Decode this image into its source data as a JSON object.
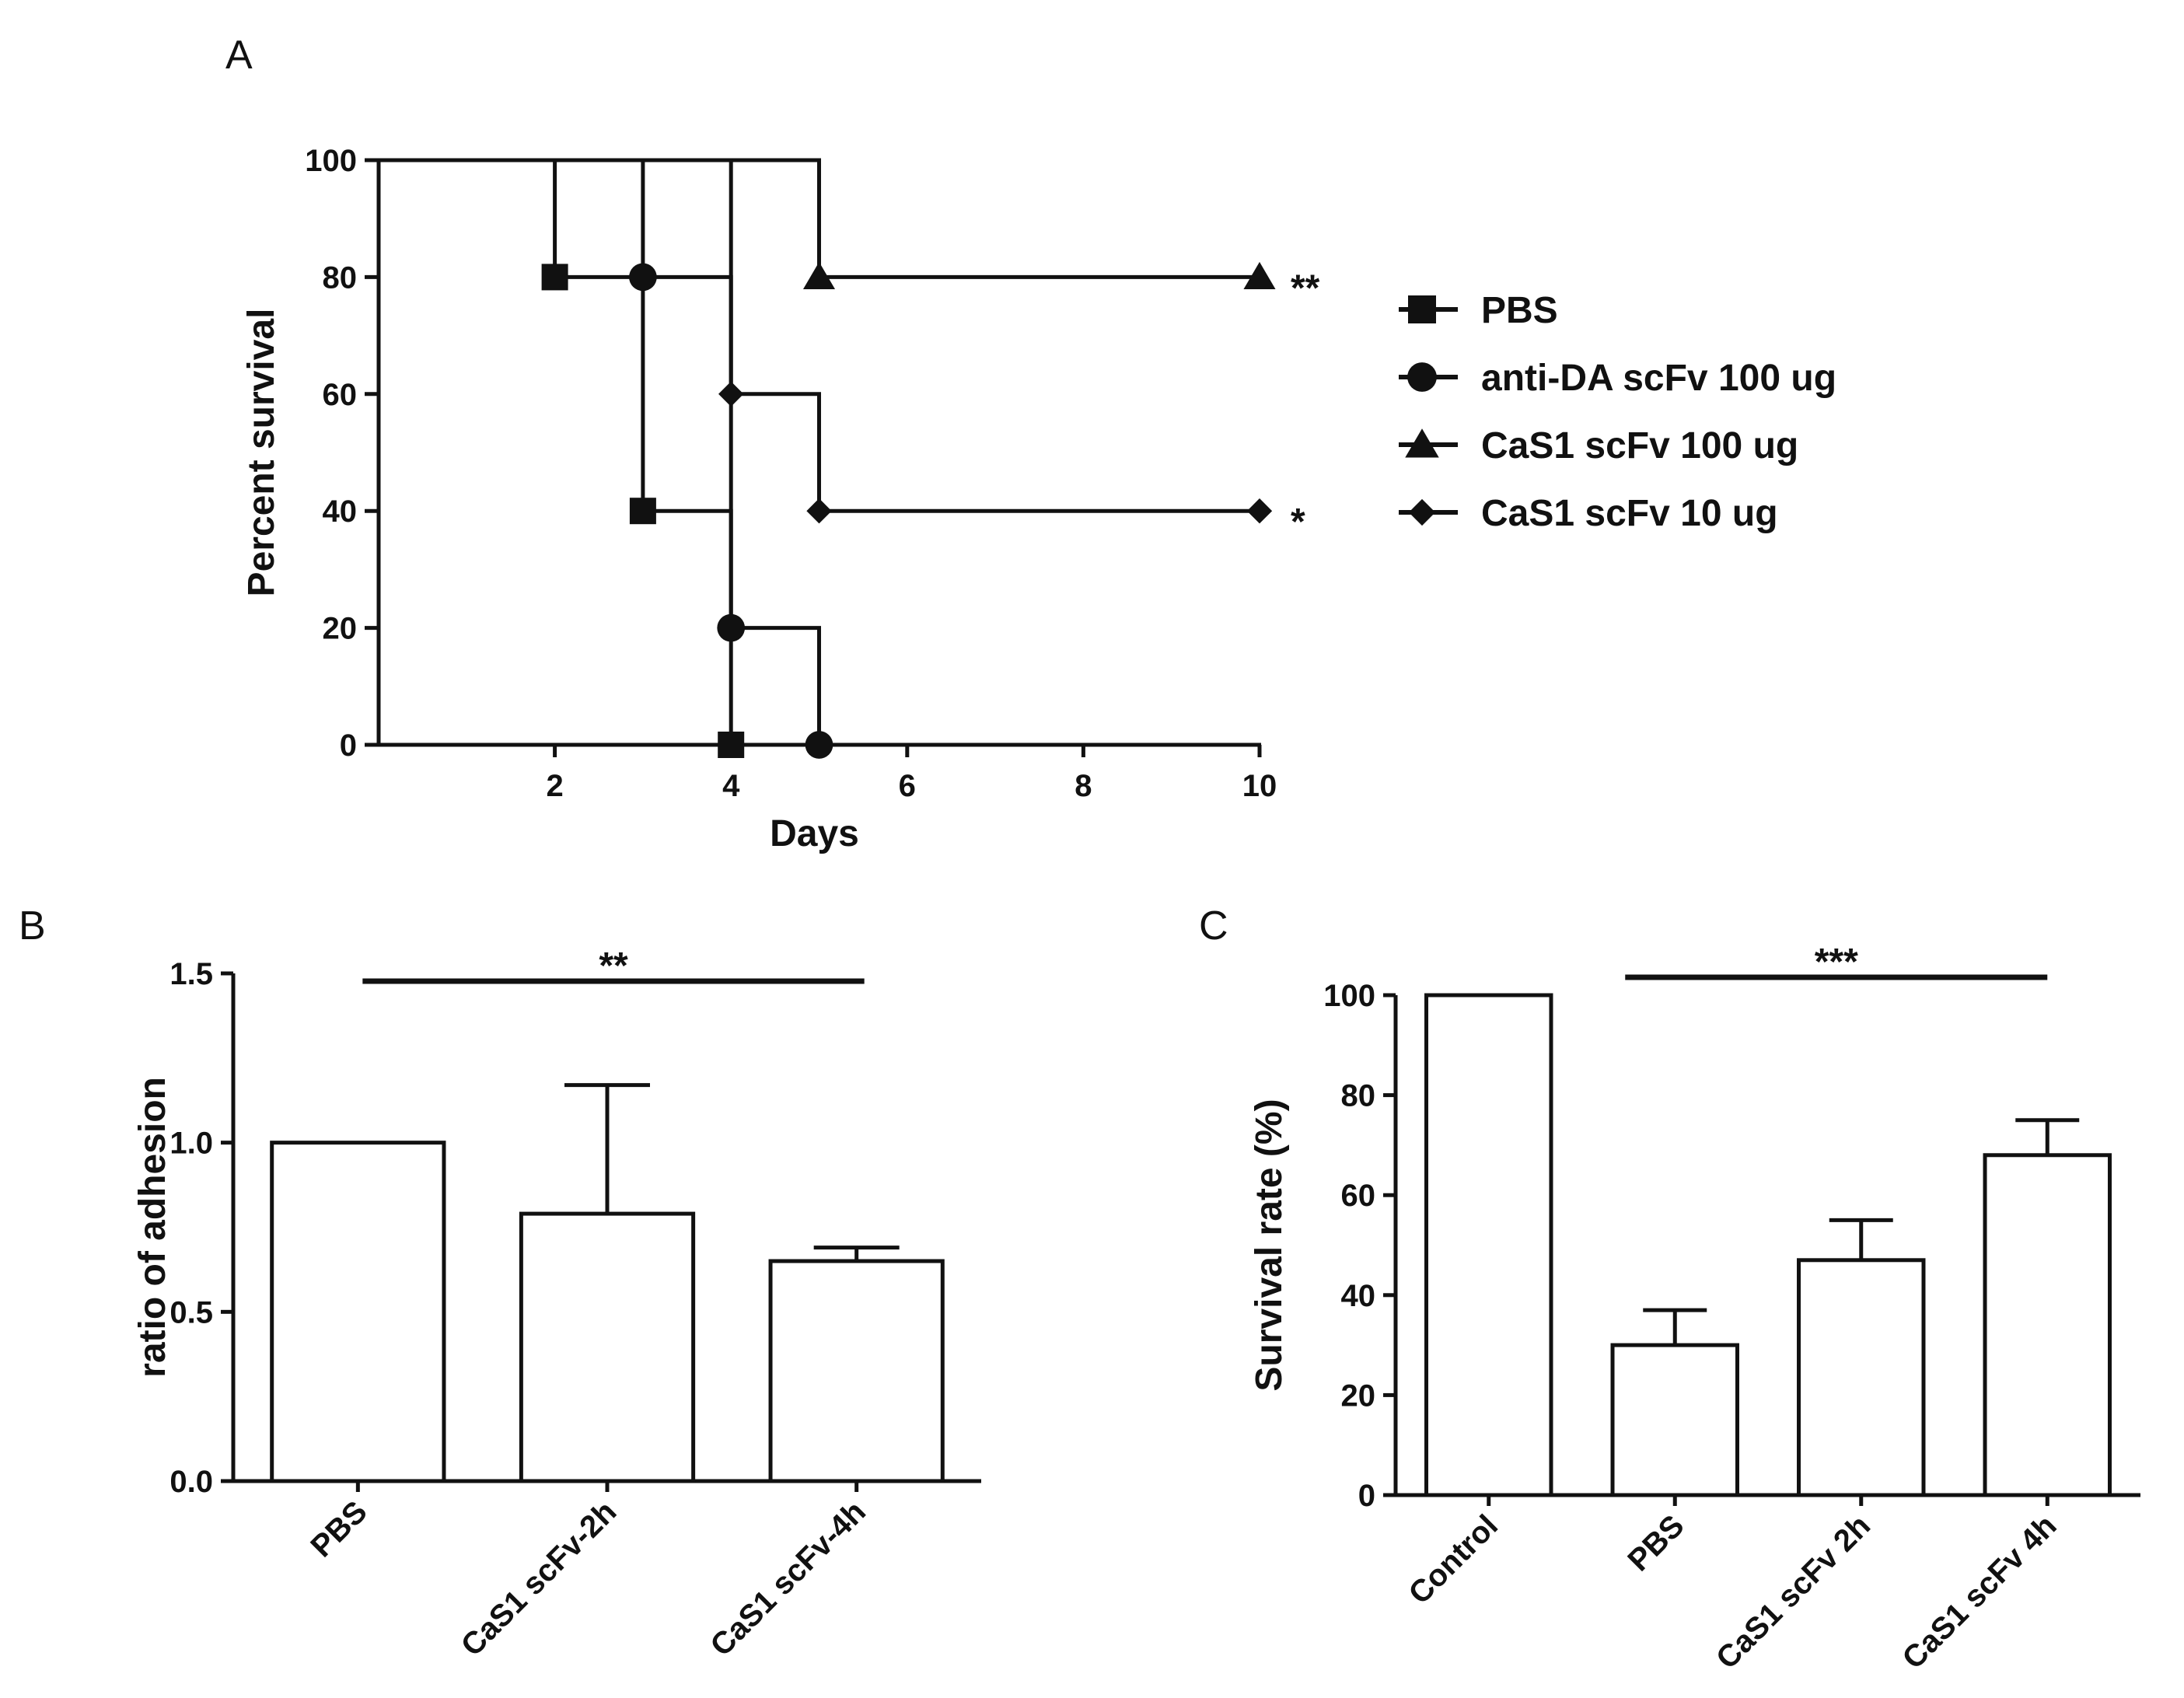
{
  "panels": {
    "a": "A",
    "b": "B",
    "c": "C"
  },
  "colors": {
    "ink": "#111111",
    "bar_fill": "#ffffff"
  },
  "chart_data": [
    {
      "id": "A",
      "type": "line",
      "subtype": "kaplan-meier",
      "title": "",
      "xlabel": "Days",
      "ylabel": "Percent survival",
      "xlim": [
        0,
        10
      ],
      "ylim": [
        0,
        100
      ],
      "xticks": [
        2,
        4,
        6,
        8,
        10
      ],
      "yticks": [
        0,
        20,
        40,
        60,
        80,
        100
      ],
      "series": [
        {
          "name": "PBS",
          "marker": "square",
          "steps": [
            [
              0,
              100
            ],
            [
              2,
              80
            ],
            [
              3,
              40
            ],
            [
              4,
              0
            ]
          ],
          "end_x": 4,
          "significance": ""
        },
        {
          "name": "anti-DA scFv 100 ug",
          "marker": "circle",
          "steps": [
            [
              0,
              100
            ],
            [
              3,
              80
            ],
            [
              4,
              20
            ],
            [
              5,
              0
            ]
          ],
          "end_x": 5,
          "significance": ""
        },
        {
          "name": "CaS1 scFv 100 ug",
          "marker": "triangle",
          "steps": [
            [
              0,
              100
            ],
            [
              5,
              80
            ]
          ],
          "end_x": 10,
          "significance": "**"
        },
        {
          "name": "CaS1 scFv 10 ug",
          "marker": "diamond",
          "steps": [
            [
              0,
              100
            ],
            [
              4,
              60
            ],
            [
              5,
              40
            ]
          ],
          "end_x": 10,
          "significance": "*"
        }
      ],
      "legend_position": "right"
    },
    {
      "id": "B",
      "type": "bar",
      "title": "",
      "xlabel": "",
      "ylabel": "ratio of adhesion",
      "ylim": [
        0,
        1.5
      ],
      "yticks": [
        "0.0",
        "0.5",
        "1.0",
        "1.5"
      ],
      "categories": [
        "PBS",
        "CaS1 scFv-2h",
        "CaS1 scFv-4h"
      ],
      "values": [
        1.0,
        0.79,
        0.65
      ],
      "errors": [
        0,
        0.38,
        0.04
      ],
      "significance": {
        "label": "**",
        "from": 0,
        "to": 2
      }
    },
    {
      "id": "C",
      "type": "bar",
      "title": "",
      "xlabel": "",
      "ylabel": "Survival rate (%)",
      "ylim": [
        0,
        100
      ],
      "yticks": [
        "0",
        "20",
        "40",
        "60",
        "80",
        "100"
      ],
      "categories": [
        "Control",
        "PBS",
        "CaS1 scFv 2h",
        "CaS1 scFv 4h"
      ],
      "values": [
        100,
        30,
        47,
        68
      ],
      "errors": [
        0,
        7,
        8,
        7
      ],
      "significance": {
        "label": "***",
        "from": 1,
        "to": 3
      }
    }
  ]
}
